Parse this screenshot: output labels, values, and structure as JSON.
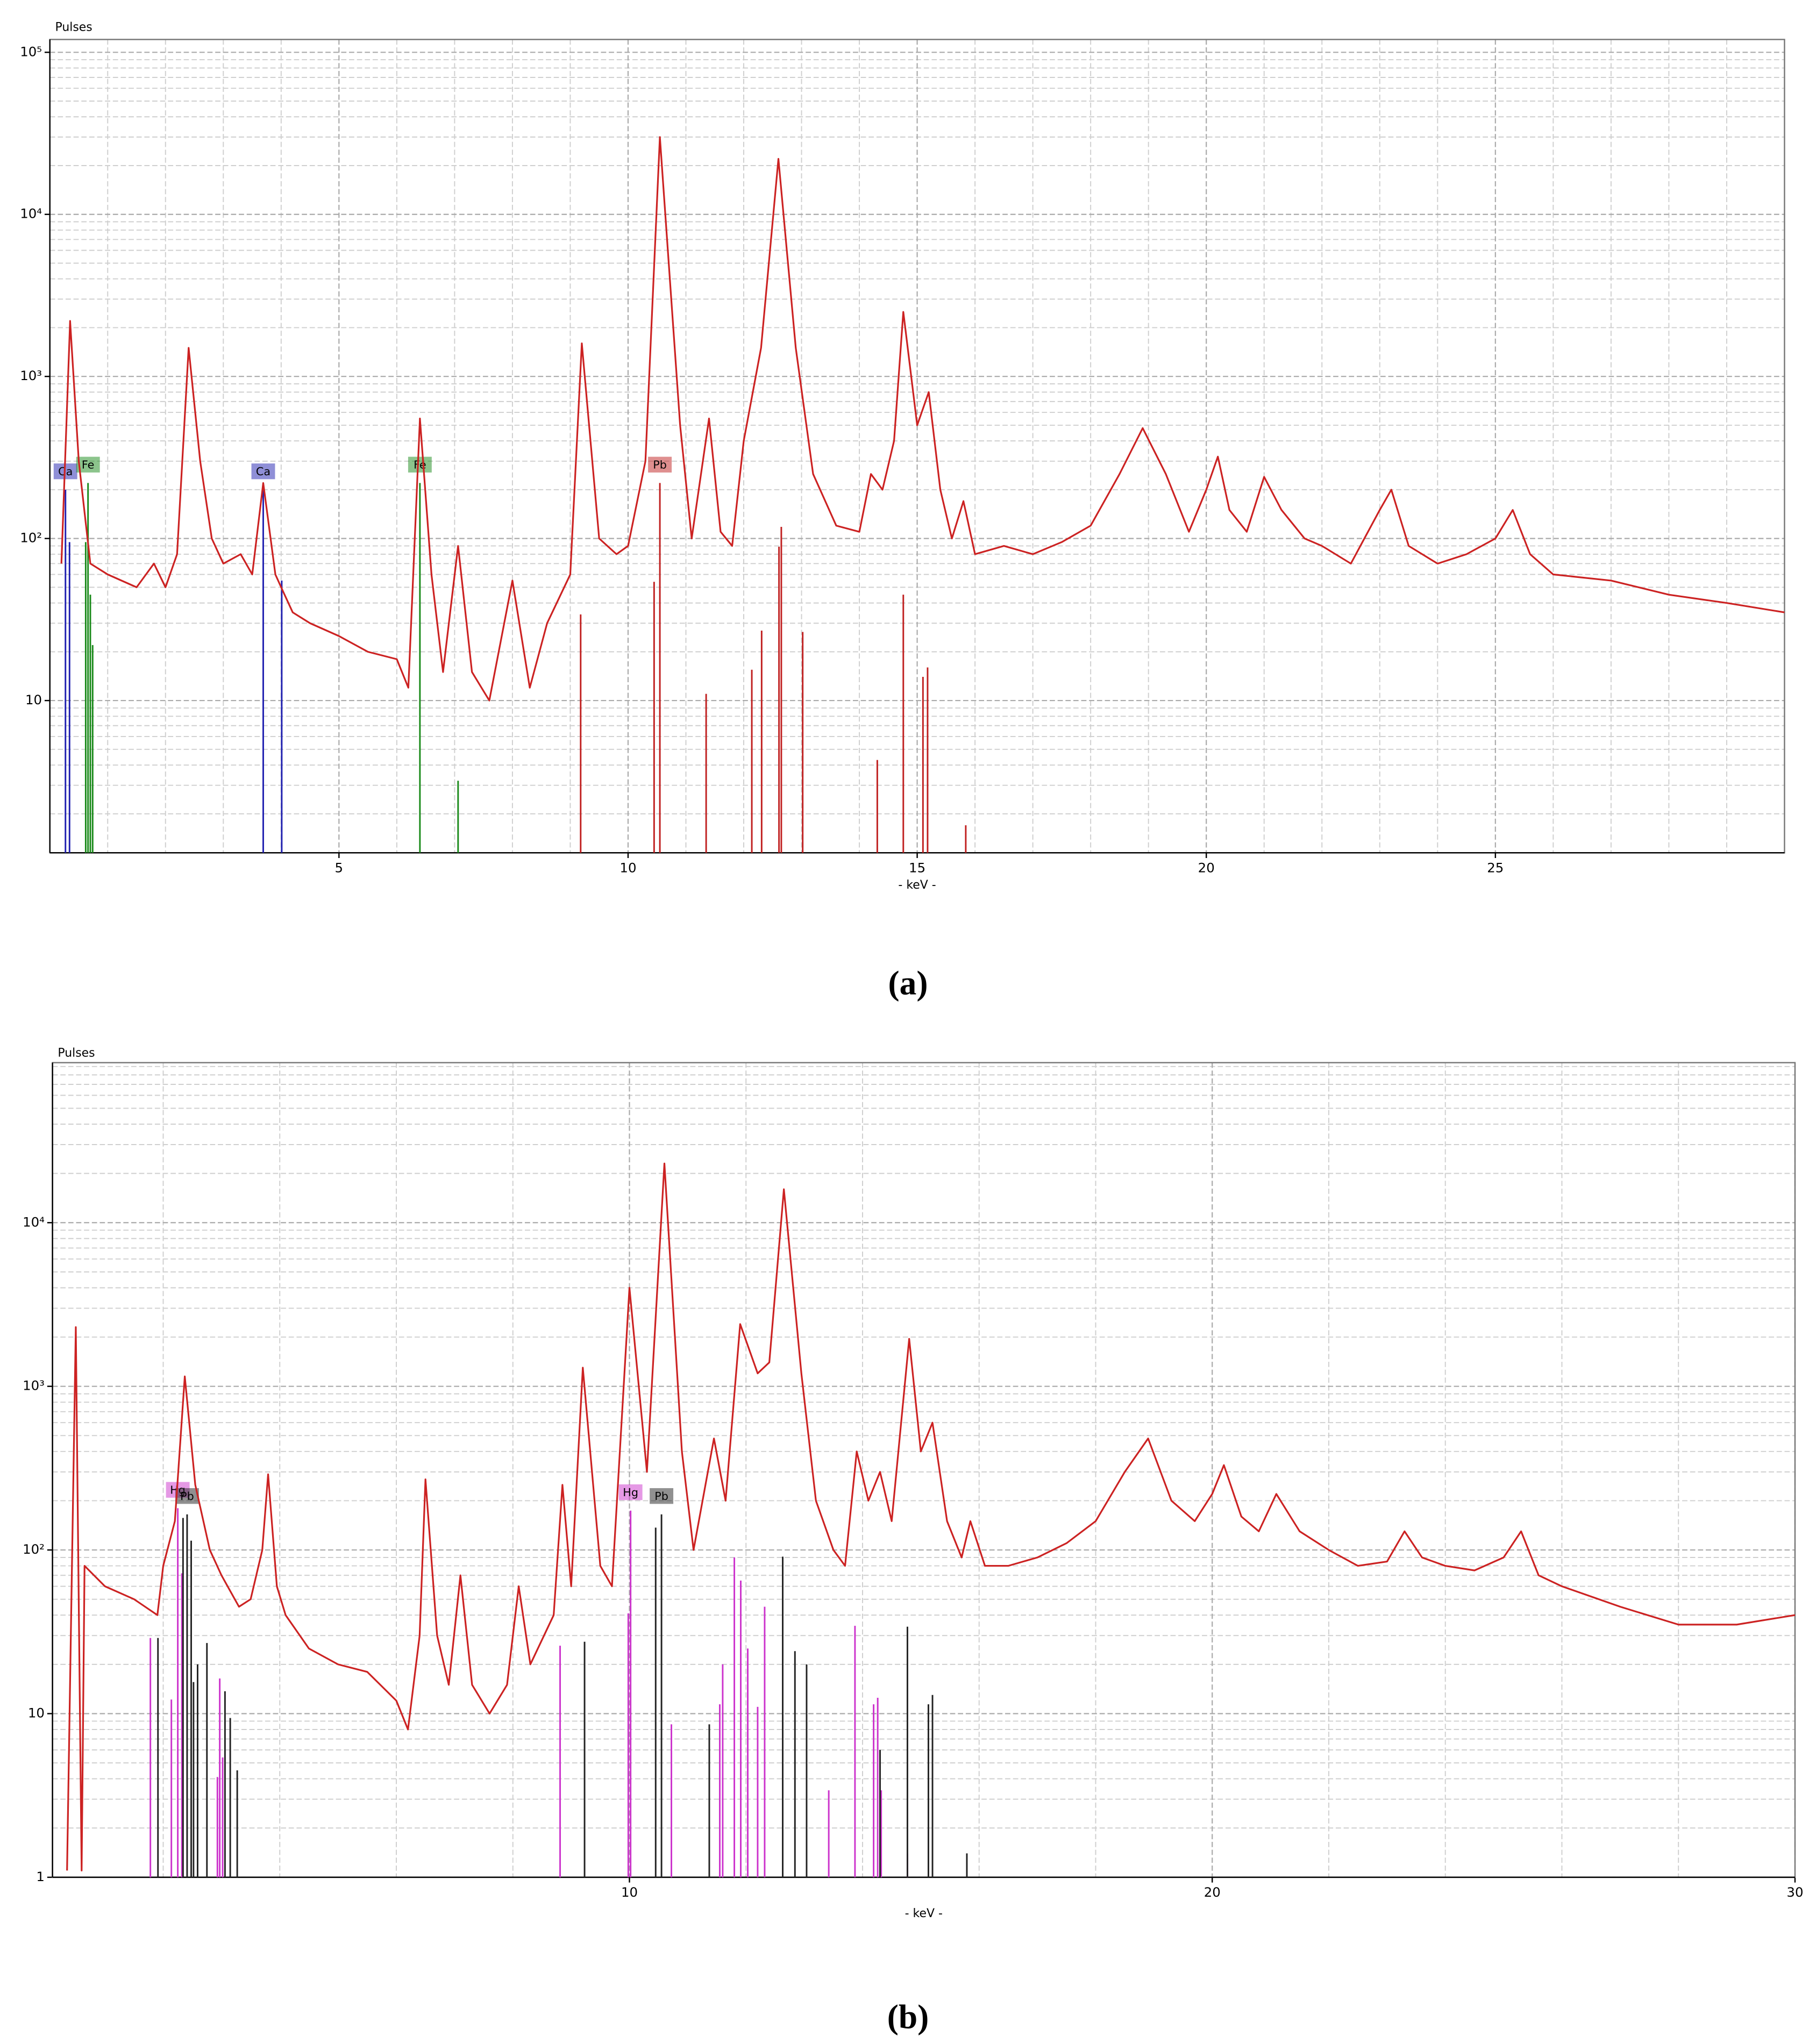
{
  "chart_data": [
    {
      "type": "line",
      "log_y": true,
      "grid": true,
      "y_label": "Pulses",
      "x_label": "- keV -",
      "caption": "(a)",
      "xlim": [
        0,
        30
      ],
      "xticks": [
        5,
        10,
        15,
        20,
        25
      ],
      "xticks_minor": [
        1,
        2,
        3,
        4,
        6,
        7,
        8,
        9,
        11,
        12,
        13,
        14,
        16,
        17,
        18,
        19,
        21,
        22,
        23,
        24,
        26,
        27,
        28,
        29
      ],
      "ylim": [
        1.15,
        120000
      ],
      "yticks": [
        10,
        {
          "value": 100,
          "label": "10²"
        },
        {
          "value": 1000,
          "label": "10³"
        },
        {
          "value": 10000,
          "label": "10⁴"
        },
        {
          "value": 100000,
          "label": "10⁵"
        }
      ],
      "yticks_minor": [
        2,
        3,
        4,
        5,
        6,
        7,
        8,
        9,
        20,
        30,
        40,
        50,
        60,
        70,
        80,
        90,
        200,
        300,
        400,
        500,
        600,
        700,
        800,
        900,
        2000,
        3000,
        4000,
        5000,
        6000,
        7000,
        8000,
        9000,
        20000,
        30000,
        40000,
        50000,
        60000,
        70000,
        80000,
        90000
      ],
      "x": [
        0.2,
        0.35,
        0.5,
        0.7,
        1.0,
        1.5,
        1.8,
        2.0,
        2.2,
        2.4,
        2.6,
        2.8,
        3.0,
        3.3,
        3.5,
        3.69,
        3.9,
        4.0,
        4.2,
        4.5,
        5.0,
        5.5,
        6.0,
        6.2,
        6.4,
        6.6,
        6.8,
        7.06,
        7.3,
        7.6,
        8.0,
        8.3,
        8.6,
        9.0,
        9.2,
        9.5,
        9.8,
        10.0,
        10.3,
        10.55,
        10.9,
        11.1,
        11.4,
        11.6,
        11.8,
        12.0,
        12.3,
        12.6,
        12.9,
        13.2,
        13.6,
        14.0,
        14.2,
        14.4,
        14.6,
        14.76,
        15.0,
        15.2,
        15.4,
        15.6,
        15.8,
        16.0,
        16.5,
        17,
        17.5,
        18,
        18.5,
        18.9,
        19.3,
        19.7,
        20.0,
        20.2,
        20.4,
        20.7,
        21.0,
        21.3,
        21.7,
        22.0,
        22.5,
        23.0,
        23.2,
        23.5,
        24,
        24.5,
        25.0,
        25.3,
        25.6,
        26,
        27,
        28,
        29,
        30
      ],
      "series": [
        {
          "color": "#cc2222",
          "values": [
            70,
            2200,
            300,
            70,
            60,
            50,
            70,
            50,
            80,
            1500,
            300,
            100,
            70,
            80,
            60,
            220,
            60,
            50,
            35,
            30,
            25,
            20,
            18,
            12,
            550,
            60,
            15,
            90,
            15,
            10,
            55,
            12,
            30,
            60,
            1600,
            100,
            80,
            90,
            300,
            30000,
            500,
            100,
            550,
            110,
            90,
            400,
            1500,
            22000,
            1500,
            250,
            120,
            110,
            250,
            200,
            400,
            2500,
            500,
            800,
            200,
            100,
            170,
            80,
            90,
            80,
            95,
            120,
            250,
            480,
            250,
            110,
            200,
            320,
            150,
            110,
            240,
            150,
            100,
            90,
            70,
            150,
            200,
            90,
            70,
            80,
            100,
            150,
            80,
            60,
            55,
            45,
            40,
            35
          ]
        }
      ],
      "element_lines": [
        {
          "name": "Ca",
          "color": "#2020b0",
          "x": [
            0.27,
            0.34
          ],
          "values": [
            200,
            95
          ]
        },
        {
          "name": "Fe",
          "color": "#1a8a1a",
          "x": [
            0.62,
            0.66,
            0.7,
            0.74
          ],
          "values": [
            95,
            220,
            45,
            22
          ]
        },
        {
          "name": "Ca",
          "color": "#2020b0",
          "x": [
            3.69,
            4.01
          ],
          "values": [
            200,
            55
          ]
        },
        {
          "name": "Fe",
          "color": "#1a8a1a",
          "x": [
            6.4,
            7.06
          ],
          "values": [
            220,
            3.2
          ]
        },
        {
          "name": "Pb",
          "color": "#c02020",
          "x": [
            9.18,
            10.45,
            10.55,
            11.35,
            12.14,
            12.31,
            12.61,
            12.65,
            13.02,
            14.31,
            14.76,
            15.1,
            15.18,
            15.84
          ],
          "values": [
            34,
            54,
            220,
            11,
            15.5,
            27,
            89,
            118,
            26.5,
            4.3,
            45,
            14,
            16,
            1.7
          ]
        }
      ]
    },
    {
      "type": "line",
      "log_y": true,
      "grid": true,
      "y_label": "Pulses",
      "x_label": "- keV -",
      "caption": "(b)",
      "xlim": [
        0.1,
        30
      ],
      "xticks": [
        10,
        20,
        30
      ],
      "xticks_minor": [
        2,
        4,
        6,
        8,
        12,
        14,
        16,
        18,
        22,
        24,
        26,
        28
      ],
      "ylim": [
        1,
        95000
      ],
      "yticks": [
        1,
        10,
        {
          "value": 100,
          "label": "10²"
        },
        {
          "value": 1000,
          "label": "10³"
        },
        {
          "value": 10000,
          "label": "10⁴"
        }
      ],
      "yticks_minor": [
        2,
        3,
        4,
        5,
        6,
        7,
        8,
        9,
        20,
        30,
        40,
        50,
        60,
        70,
        80,
        90,
        200,
        300,
        400,
        500,
        600,
        700,
        800,
        900,
        2000,
        3000,
        4000,
        5000,
        6000,
        7000,
        8000,
        9000,
        20000,
        30000,
        40000,
        50000,
        60000,
        70000,
        80000,
        90000
      ],
      "x": [
        0.35,
        0.5,
        0.6,
        0.65,
        1.0,
        1.5,
        1.9,
        2.0,
        2.2,
        2.37,
        2.55,
        2.8,
        3.0,
        3.3,
        3.5,
        3.7,
        3.8,
        3.95,
        4.1,
        4.5,
        5,
        5.5,
        6.0,
        6.2,
        6.4,
        6.5,
        6.7,
        6.9,
        7.1,
        7.3,
        7.6,
        7.9,
        8.1,
        8.3,
        8.7,
        8.85,
        9.0,
        9.2,
        9.5,
        9.7,
        10.0,
        10.3,
        10.6,
        10.9,
        11.1,
        11.45,
        11.65,
        11.9,
        12.2,
        12.4,
        12.65,
        12.95,
        13.2,
        13.5,
        13.7,
        13.9,
        14.1,
        14.3,
        14.5,
        14.8,
        15.0,
        15.2,
        15.45,
        15.7,
        15.85,
        16.1,
        16.5,
        17,
        17.5,
        18.0,
        18.5,
        18.9,
        19.3,
        19.7,
        20.0,
        20.2,
        20.5,
        20.8,
        21.1,
        21.5,
        22.0,
        22.5,
        23.0,
        23.3,
        23.6,
        24.0,
        24.5,
        25.0,
        25.3,
        25.6,
        26,
        27,
        28,
        29,
        30
      ],
      "series": [
        {
          "color": "#cc2222",
          "values": [
            1.1,
            2300,
            1.1,
            80,
            60,
            50,
            40,
            80,
            150,
            1150,
            250,
            100,
            70,
            45,
            50,
            100,
            290,
            60,
            40,
            25,
            20,
            18,
            12,
            8,
            30,
            270,
            30,
            15,
            70,
            15,
            10,
            15,
            60,
            20,
            40,
            250,
            60,
            1300,
            80,
            60,
            4000,
            300,
            23000,
            400,
            100,
            480,
            200,
            2400,
            1200,
            1400,
            16000,
            1200,
            200,
            100,
            80,
            400,
            200,
            300,
            150,
            1950,
            400,
            600,
            150,
            90,
            150,
            80,
            80,
            90,
            110,
            150,
            300,
            480,
            200,
            150,
            220,
            330,
            160,
            130,
            220,
            130,
            100,
            80,
            85,
            130,
            90,
            80,
            75,
            90,
            130,
            70,
            60,
            45,
            35,
            35,
            40
          ]
        }
      ],
      "element_lines": [
        {
          "name": "Hg",
          "color": "#cc33cc",
          "x": [
            1.78,
            2.14,
            2.25,
            2.32,
            2.93,
            2.97,
            3.02
          ],
          "values": [
            29,
            12.2,
            180,
            72,
            4.1,
            16.4,
            5.4
          ]
        },
        {
          "name": "Pb",
          "color": "#222222",
          "x": [
            1.91,
            2.34,
            2.41,
            2.48,
            2.52,
            2.59,
            2.75,
            3.06,
            3.15,
            3.27
          ],
          "values": [
            29,
            157,
            165,
            114,
            15.6,
            20,
            27,
            13.7,
            9.4,
            4.5
          ]
        },
        {
          "name": "Hg",
          "color": "#cc33cc",
          "x": [
            8.81,
            9.98,
            10.02,
            10.72,
            11.55,
            11.6,
            11.8,
            11.91,
            12.03,
            12.2,
            12.32,
            13.42,
            13.87,
            14.19,
            14.26,
            14.32,
            14.77
          ],
          "values": [
            26,
            41,
            174,
            8.6,
            11.4,
            20,
            90,
            65,
            25,
            11,
            45,
            3.4,
            34.4,
            11.4,
            12.5,
            3.4,
            1.4
          ]
        },
        {
          "name": "Pb",
          "color": "#222222",
          "x": [
            9.23,
            10.45,
            10.55,
            11.37,
            12.63,
            12.84,
            13.04,
            14.3,
            14.77,
            15.13,
            15.2,
            15.79
          ],
          "values": [
            27.5,
            137,
            165,
            8.6,
            91,
            24.1,
            20,
            6,
            34,
            11.4,
            13,
            1.4
          ]
        }
      ]
    }
  ]
}
